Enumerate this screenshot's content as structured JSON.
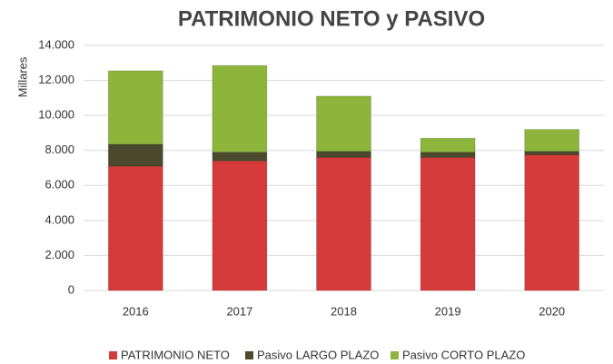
{
  "chart_data": {
    "type": "stacked_bar",
    "title": "PATRIMONIO NETO y PASIVO",
    "y_label": "Millares",
    "categories": [
      "2016",
      "2017",
      "2018",
      "2019",
      "2020"
    ],
    "series": [
      {
        "name": "PATRIMONIO NETO",
        "color": "#d63b3b",
        "values": [
          7100,
          7400,
          7600,
          7600,
          7750
        ]
      },
      {
        "name": "Pasivo LARGO PLAZO",
        "color": "#4b4a2c",
        "values": [
          1250,
          500,
          350,
          300,
          200
        ]
      },
      {
        "name": "Pasivo CORTO PLAZO",
        "color": "#8db53c",
        "values": [
          4200,
          4950,
          3150,
          800,
          1250
        ]
      }
    ],
    "ylim": [
      0,
      14000
    ],
    "yticks": [
      0,
      {
        "value": 2000,
        "label": "2.000"
      },
      {
        "value": 4000,
        "label": "4.000"
      },
      {
        "value": 6000,
        "label": "6.000"
      },
      {
        "value": 8000,
        "label": "8.000"
      },
      {
        "value": 10000,
        "label": "10.000"
      },
      {
        "value": 12000,
        "label": "12.000"
      },
      {
        "value": 14000,
        "label": "14.000"
      }
    ],
    "grid": true,
    "legend": "bottom"
  }
}
